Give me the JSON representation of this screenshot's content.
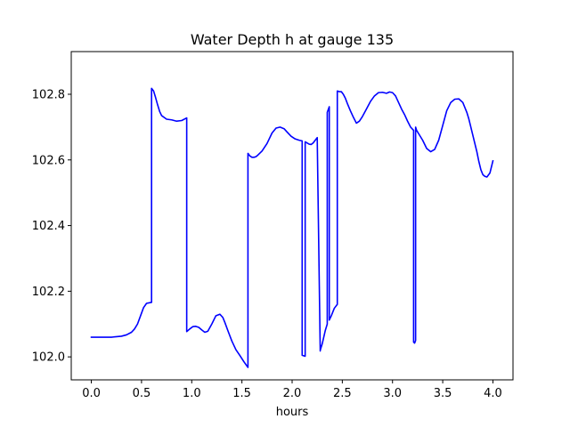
{
  "chart_data": {
    "type": "line",
    "title": "Water Depth h at gauge 135",
    "xlabel": "hours",
    "ylabel": "",
    "xlim": [
      -0.2,
      4.2
    ],
    "ylim": [
      101.93,
      102.93
    ],
    "xticks": [
      0.0,
      0.5,
      1.0,
      1.5,
      2.0,
      2.5,
      3.0,
      3.5,
      4.0
    ],
    "xtick_labels": [
      "0.0",
      "0.5",
      "1.0",
      "1.5",
      "2.0",
      "2.5",
      "3.0",
      "3.5",
      "4.0"
    ],
    "yticks": [
      102.0,
      102.2,
      102.4,
      102.6,
      102.8
    ],
    "ytick_labels": [
      "102.0",
      "102.2",
      "102.4",
      "102.6",
      "102.8"
    ],
    "grid": false,
    "legend": "none",
    "series": [
      {
        "color": "#0000ff",
        "x": [
          0.0,
          0.1,
          0.2,
          0.3,
          0.35,
          0.4,
          0.43,
          0.46,
          0.49,
          0.52,
          0.55,
          0.58,
          0.6,
          0.6,
          0.62,
          0.64,
          0.66,
          0.68,
          0.7,
          0.75,
          0.8,
          0.85,
          0.9,
          0.95,
          0.95,
          0.98,
          1.01,
          1.04,
          1.07,
          1.1,
          1.13,
          1.16,
          1.2,
          1.24,
          1.28,
          1.31,
          1.33,
          1.36,
          1.4,
          1.44,
          1.48,
          1.52,
          1.56,
          1.56,
          1.58,
          1.6,
          1.62,
          1.64,
          1.66,
          1.7,
          1.75,
          1.8,
          1.84,
          1.88,
          1.92,
          1.95,
          1.99,
          2.03,
          2.07,
          2.1,
          2.1,
          2.13,
          2.13,
          2.17,
          2.19,
          2.21,
          2.23,
          2.25,
          2.28,
          2.28,
          2.3,
          2.33,
          2.35,
          2.35,
          2.37,
          2.37,
          2.39,
          2.42,
          2.45,
          2.45,
          2.47,
          2.49,
          2.51,
          2.53,
          2.55,
          2.58,
          2.61,
          2.64,
          2.67,
          2.7,
          2.74,
          2.78,
          2.82,
          2.86,
          2.9,
          2.94,
          2.97,
          3.0,
          3.03,
          3.06,
          3.09,
          3.12,
          3.15,
          3.18,
          3.21,
          3.21,
          3.22,
          3.23,
          3.23,
          3.24,
          3.26,
          3.3,
          3.34,
          3.38,
          3.42,
          3.46,
          3.5,
          3.54,
          3.58,
          3.62,
          3.66,
          3.7,
          3.74,
          3.76,
          3.78,
          3.8,
          3.82,
          3.84,
          3.86,
          3.88,
          3.9,
          3.92,
          3.94,
          3.97,
          4.0
        ],
        "y": [
          102.06,
          102.06,
          102.06,
          102.063,
          102.067,
          102.075,
          102.085,
          102.1,
          102.125,
          102.15,
          102.163,
          102.165,
          102.166,
          102.818,
          102.81,
          102.79,
          102.768,
          102.748,
          102.735,
          102.724,
          102.722,
          102.718,
          102.72,
          102.728,
          102.077,
          102.085,
          102.092,
          102.093,
          102.09,
          102.082,
          102.075,
          102.078,
          102.1,
          102.125,
          102.13,
          102.12,
          102.105,
          102.08,
          102.048,
          102.022,
          102.004,
          101.985,
          101.968,
          102.62,
          102.612,
          102.608,
          102.608,
          102.61,
          102.615,
          102.627,
          102.65,
          102.682,
          102.697,
          102.7,
          102.695,
          102.685,
          102.672,
          102.664,
          102.66,
          102.658,
          102.005,
          102.002,
          102.655,
          102.648,
          102.647,
          102.652,
          102.66,
          102.668,
          102.018,
          102.02,
          102.04,
          102.08,
          102.1,
          102.745,
          102.762,
          102.112,
          102.125,
          102.148,
          102.16,
          102.81,
          102.808,
          102.808,
          102.8,
          102.788,
          102.772,
          102.75,
          102.73,
          102.712,
          102.718,
          102.732,
          102.755,
          102.778,
          102.795,
          102.805,
          102.806,
          102.803,
          102.807,
          102.805,
          102.795,
          102.775,
          102.755,
          102.738,
          102.718,
          102.7,
          102.69,
          102.045,
          102.042,
          102.05,
          102.7,
          102.69,
          102.68,
          102.66,
          102.635,
          102.625,
          102.632,
          102.66,
          102.705,
          102.75,
          102.775,
          102.785,
          102.786,
          102.775,
          102.745,
          102.725,
          102.7,
          102.675,
          102.65,
          102.625,
          102.595,
          102.57,
          102.555,
          102.55,
          102.548,
          102.56,
          102.597
        ]
      }
    ]
  }
}
